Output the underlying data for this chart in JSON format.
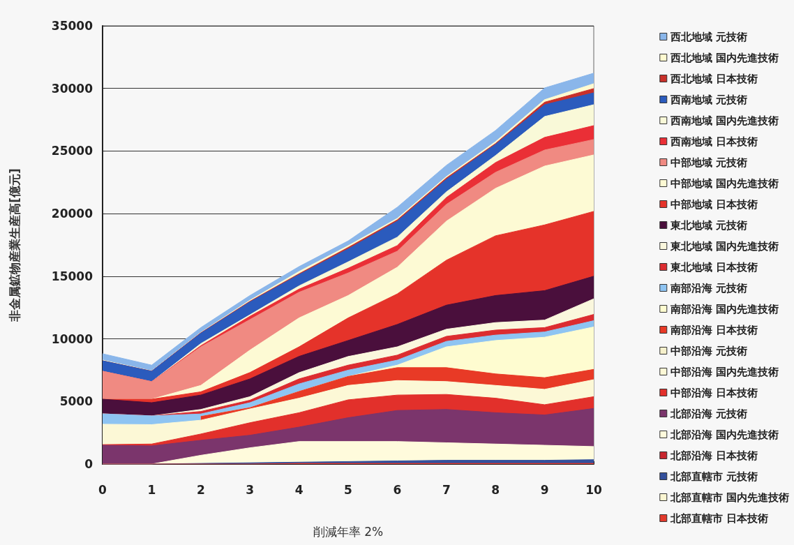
{
  "chart_data": {
    "type": "area",
    "stacked": true,
    "xlabel": "削減年率 2%",
    "ylabel": "非金属鉱物産業生産高[億元]",
    "x": [
      0,
      1,
      2,
      3,
      4,
      5,
      6,
      7,
      8,
      9,
      10
    ],
    "xlim": [
      0,
      10
    ],
    "xticks": [
      0,
      1,
      2,
      3,
      4,
      5,
      6,
      7,
      8,
      9,
      10
    ],
    "ylim": [
      0,
      35000
    ],
    "yticks": [
      0,
      5000,
      10000,
      15000,
      20000,
      25000,
      30000,
      35000
    ],
    "grid": "y",
    "legend": "right",
    "series": [
      {
        "name": "北部直轄市 日本技術",
        "color": "#e23a2c",
        "values": [
          0,
          0,
          0,
          0,
          50,
          50,
          50,
          50,
          50,
          50,
          50
        ]
      },
      {
        "name": "北部直轄市 国内先進技術",
        "color": "#fbf6d2",
        "values": [
          null,
          null,
          null,
          null,
          null,
          null,
          null,
          null,
          null,
          null,
          null
        ]
      },
      {
        "name": "北部直轄市 元技術",
        "color": "#34509c",
        "values": [
          0,
          0,
          50,
          100,
          100,
          150,
          200,
          250,
          250,
          250,
          300
        ]
      },
      {
        "name": "北部沿海 日本技術",
        "color": "#c8262e",
        "values": [
          null,
          null,
          null,
          null,
          null,
          null,
          null,
          null,
          null,
          null,
          null
        ]
      },
      {
        "name": "北部沿海 国内先進技術",
        "color": "#fffbdc",
        "values": [
          0,
          0,
          650,
          1200,
          1650,
          1600,
          1550,
          1400,
          1300,
          1200,
          1050
        ]
      },
      {
        "name": "北部沿海 元技術",
        "color": "#7b356c",
        "values": [
          1500,
          1450,
          1200,
          1000,
          1150,
          1900,
          2480,
          2660,
          2500,
          2420,
          3040
        ]
      },
      {
        "name": "中部沿海 日本技術",
        "color": "#e2302b",
        "values": [
          50,
          150,
          500,
          1000,
          1150,
          1430,
          1230,
          1200,
          1160,
          820,
          940
        ]
      },
      {
        "name": "中部沿海 国内先進技術",
        "color": "#fcf8d6",
        "values": [
          1630,
          1550,
          1100,
          1100,
          1160,
          1150,
          1160,
          1030,
          1020,
          1230,
          1360
        ]
      },
      {
        "name": "中部沿海 元技術",
        "color": "#f6f1cc",
        "values": [
          null,
          null,
          null,
          null,
          null,
          null,
          null,
          null,
          null,
          null,
          null
        ]
      },
      {
        "name": "南部沿海 日本技術",
        "color": "#e83a26",
        "values": [
          null,
          null,
          300,
          100,
          540,
          720,
          1030,
          1110,
          920,
          930,
          820
        ]
      },
      {
        "name": "南部沿海 国内先進技術",
        "color": "#fefcd0",
        "values": [
          null,
          null,
          0,
          0,
          0,
          0,
          200,
          1660,
          2670,
          3230,
          3390
        ]
      },
      {
        "name": "南部沿海 元技術",
        "color": "#8ec4f2",
        "values": [
          830,
          700,
          200,
          400,
          600,
          500,
          400,
          440,
          430,
          420,
          500
        ]
      },
      {
        "name": "東北地域 日本技術",
        "color": "#dc2c30",
        "values": [
          0,
          0,
          200,
          200,
          400,
          400,
          400,
          400,
          400,
          350,
          500
        ]
      },
      {
        "name": "東北地域 国内先進技術",
        "color": "#faf7dd",
        "values": [
          0,
          0,
          160,
          280,
          500,
          690,
          660,
          570,
          600,
          600,
          1250
        ]
      },
      {
        "name": "東北地域 元技術",
        "color": "#4a0f3c",
        "values": [
          1170,
          1050,
          1150,
          1420,
          1300,
          1280,
          1790,
          1920,
          2160,
          2350,
          1800
        ]
      },
      {
        "name": "中部地域 日本技術",
        "color": "#e5332a",
        "values": [
          0,
          280,
          260,
          510,
          760,
          1800,
          2440,
          3590,
          4770,
          5250,
          5180
        ]
      },
      {
        "name": "中部地域 国内先進技術",
        "color": "#fdfad4",
        "values": [
          0,
          0,
          510,
          1790,
          2310,
          1790,
          2130,
          3120,
          3790,
          4700,
          4510
        ]
      },
      {
        "name": "中部地域 元技術",
        "color": "#f08a82",
        "values": [
          2230,
          1400,
          3080,
          2440,
          2050,
          1800,
          1280,
          1340,
          1280,
          1280,
          1230
        ]
      },
      {
        "name": "西南地域 日本技術",
        "color": "#ea2f36",
        "values": [
          0,
          0,
          90,
          260,
          250,
          380,
          450,
          550,
          780,
          1010,
          1110
        ]
      },
      {
        "name": "西南地域 国内先進技術",
        "color": "#f9f9d8",
        "values": [
          0,
          0,
          170,
          120,
          260,
          510,
          670,
          450,
          560,
          1670,
          1670
        ]
      },
      {
        "name": "西南地域 元技術",
        "color": "#2b5bbd",
        "values": [
          840,
          830,
          830,
          1030,
          900,
          1030,
          1280,
          1000,
          890,
          940,
          950
        ]
      },
      {
        "name": "西北地域 日本技術",
        "color": "#c8302a",
        "values": [
          0,
          10,
          30,
          50,
          70,
          120,
          100,
          110,
          70,
          200,
          340
        ]
      },
      {
        "name": "西北地域 国内先進技術",
        "color": "#fffad0",
        "values": [
          50,
          20,
          30,
          80,
          180,
          140,
          120,
          110,
          150,
          200,
          390
        ]
      },
      {
        "name": "西北地域 元技術",
        "color": "#8ab6ea",
        "values": [
          510,
          460,
          390,
          380,
          390,
          380,
          890,
          900,
          890,
          940,
          840
        ]
      }
    ]
  }
}
